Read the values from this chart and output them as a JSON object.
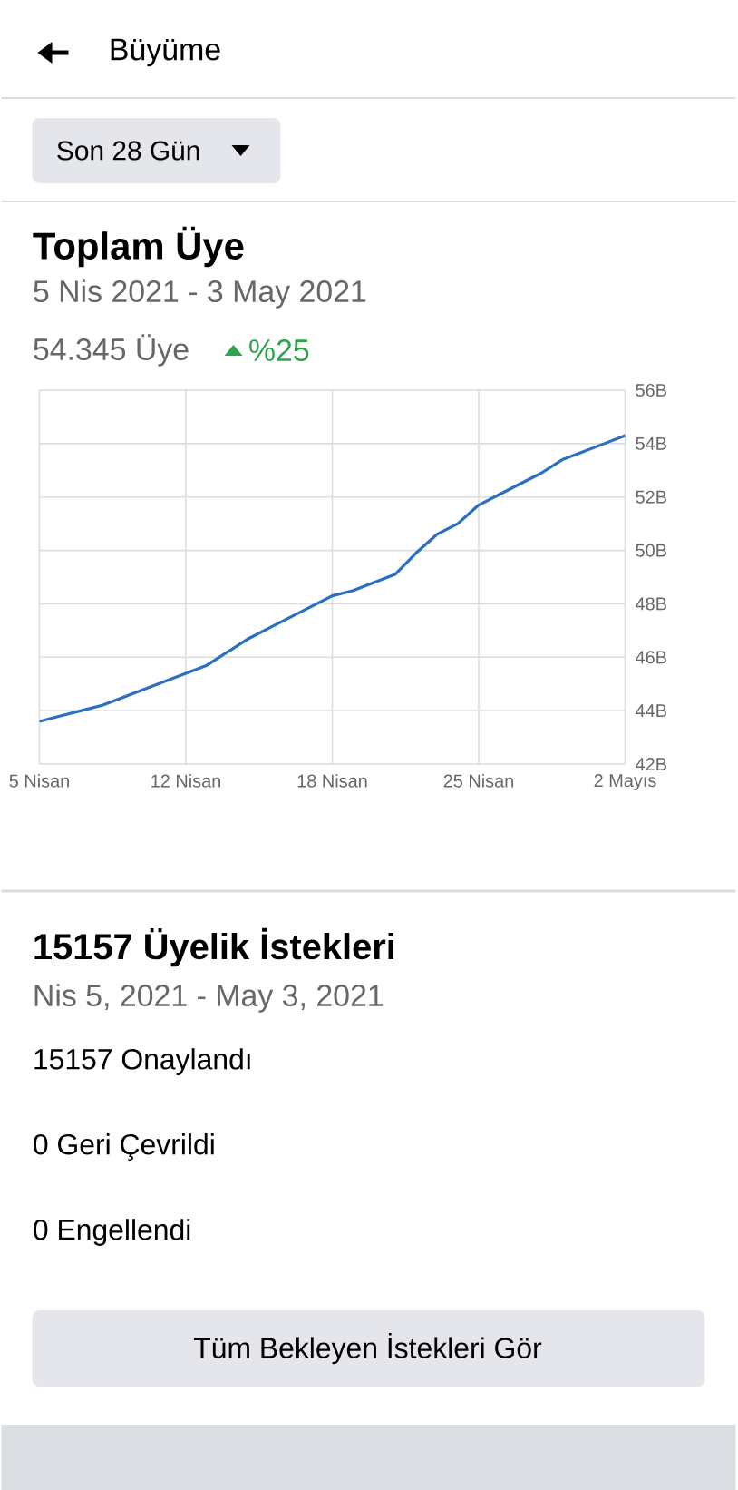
{
  "chart_data": {
    "type": "line",
    "title": "Toplam Üye",
    "subtitle": "5 Nis 2021 - 3 May 2021",
    "annotations": [
      "Büyüme",
      "Son 28 Gün",
      "54.345 Üye",
      "%25",
      "15157 Üyelik İstekleri",
      "Nis 5, 2021 - May 3, 2021",
      "15157 Onaylandı",
      "0 Geri Çevrildi",
      "0 Engellendi",
      "Tüm Bekleyen İstekleri Gör"
    ],
    "categories": [
      "5 Nisan",
      null,
      null,
      null,
      null,
      null,
      null,
      "12 Nisan",
      null,
      null,
      null,
      null,
      null,
      null,
      "18 Nisan",
      null,
      null,
      null,
      null,
      null,
      null,
      "25 Nisan",
      null,
      null,
      null,
      null,
      null,
      null,
      "2 Mayıs"
    ],
    "series": [
      {
        "color": "#2a6fc0",
        "values": [
          43.6,
          43.8,
          44.0,
          44.2,
          44.5,
          44.8,
          45.1,
          45.4,
          45.7,
          46.2,
          46.7,
          47.1,
          47.5,
          47.9,
          48.3,
          48.5,
          48.8,
          49.1,
          49.9,
          50.6,
          51.0,
          51.7,
          52.1,
          52.5,
          52.9,
          53.4,
          53.7,
          54.0,
          54.3
        ]
      }
    ],
    "ylim": [
      42,
      56
    ],
    "yticks": [
      {
        "value": 42,
        "label": "42B"
      },
      {
        "value": 44,
        "label": "44B"
      },
      {
        "value": 46,
        "label": "46B"
      },
      {
        "value": 48,
        "label": "48B"
      },
      {
        "value": 50,
        "label": "50B"
      },
      {
        "value": 52,
        "label": "52B"
      },
      {
        "value": 54,
        "label": "54B"
      },
      {
        "value": 56,
        "label": "56B"
      }
    ],
    "grid": true,
    "marker": "none",
    "line_style": "solid"
  }
}
